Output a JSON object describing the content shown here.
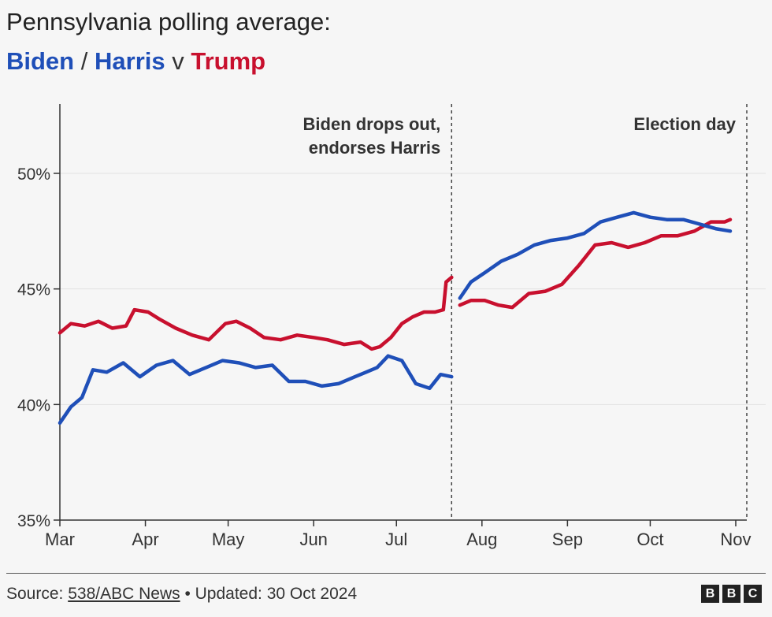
{
  "header": {
    "title": "Pennsylvania polling average:",
    "subtitle": {
      "biden": "Biden",
      "slash": "/",
      "harris": "Harris",
      "v": "v",
      "trump": "Trump"
    }
  },
  "colors": {
    "dem": "#1f4fb8",
    "rep": "#c8102e"
  },
  "chart_data": {
    "type": "line",
    "title": "Pennsylvania polling average:",
    "x_range": [
      "2024-03-01",
      "2024-11-05"
    ],
    "ylim": [
      35,
      53
    ],
    "y_ticks": [
      {
        "value": 50,
        "label": "50%"
      },
      {
        "value": 45,
        "label": "45%"
      },
      {
        "value": 40,
        "label": "40%"
      },
      {
        "value": 35,
        "label": "35%"
      }
    ],
    "x_ticks": [
      {
        "date": "2024-03-01",
        "label": "Mar"
      },
      {
        "date": "2024-04-01",
        "label": "Apr"
      },
      {
        "date": "2024-05-01",
        "label": "May"
      },
      {
        "date": "2024-06-01",
        "label": "Jun"
      },
      {
        "date": "2024-07-01",
        "label": "Jul"
      },
      {
        "date": "2024-08-01",
        "label": "Aug"
      },
      {
        "date": "2024-09-01",
        "label": "Sep"
      },
      {
        "date": "2024-10-01",
        "label": "Oct"
      },
      {
        "date": "2024-11-01",
        "label": "Nov"
      }
    ],
    "grid": true,
    "annotations": [
      {
        "date": "2024-07-21",
        "lines": [
          "Biden drops out,",
          "endorses Harris"
        ]
      },
      {
        "date": "2024-11-05",
        "lines": [
          "Election day"
        ]
      }
    ],
    "series": [
      {
        "name": "Trump",
        "color": "#c8102e",
        "segments": [
          {
            "x": [
              "2024-03-01",
              "2024-03-05",
              "2024-03-10",
              "2024-03-15",
              "2024-03-20",
              "2024-03-25",
              "2024-03-28",
              "2024-04-02",
              "2024-04-06",
              "2024-04-12",
              "2024-04-18",
              "2024-04-24",
              "2024-04-30",
              "2024-05-04",
              "2024-05-09",
              "2024-05-14",
              "2024-05-20",
              "2024-05-26",
              "2024-06-01",
              "2024-06-06",
              "2024-06-12",
              "2024-06-18",
              "2024-06-22",
              "2024-06-25",
              "2024-06-29",
              "2024-07-03",
              "2024-07-07",
              "2024-07-11",
              "2024-07-15",
              "2024-07-18",
              "2024-07-19",
              "2024-07-21"
            ],
            "y": [
              43.1,
              43.5,
              43.4,
              43.6,
              43.3,
              43.4,
              44.1,
              44.0,
              43.7,
              43.3,
              43.0,
              42.8,
              43.5,
              43.6,
              43.3,
              42.9,
              42.8,
              43.0,
              42.9,
              42.8,
              42.6,
              42.7,
              42.4,
              42.5,
              42.9,
              43.5,
              43.8,
              44.0,
              44.0,
              44.1,
              45.3,
              45.5
            ]
          },
          {
            "x": [
              "2024-07-24",
              "2024-07-28",
              "2024-08-02",
              "2024-08-07",
              "2024-08-12",
              "2024-08-18",
              "2024-08-24",
              "2024-08-30",
              "2024-09-05",
              "2024-09-11",
              "2024-09-17",
              "2024-09-23",
              "2024-09-29",
              "2024-10-05",
              "2024-10-11",
              "2024-10-17",
              "2024-10-23",
              "2024-10-28",
              "2024-10-30"
            ],
            "y": [
              44.3,
              44.5,
              44.5,
              44.3,
              44.2,
              44.8,
              44.9,
              45.2,
              46.0,
              46.9,
              47.0,
              46.8,
              47.0,
              47.3,
              47.3,
              47.5,
              47.9,
              47.9,
              48.0
            ]
          }
        ]
      },
      {
        "name": "Harris",
        "color": "#1f4fb8",
        "segments": [
          {
            "x": [
              "2024-03-01",
              "2024-03-05",
              "2024-03-09",
              "2024-03-13",
              "2024-03-18",
              "2024-03-24",
              "2024-03-30",
              "2024-04-05",
              "2024-04-11",
              "2024-04-17",
              "2024-04-23",
              "2024-04-29",
              "2024-05-05",
              "2024-05-11",
              "2024-05-17",
              "2024-05-23",
              "2024-05-29",
              "2024-06-04",
              "2024-06-10",
              "2024-06-16",
              "2024-06-20",
              "2024-06-24",
              "2024-06-28",
              "2024-07-03",
              "2024-07-08",
              "2024-07-13",
              "2024-07-17",
              "2024-07-21"
            ],
            "y": [
              39.2,
              39.9,
              40.3,
              41.5,
              41.4,
              41.8,
              41.2,
              41.7,
              41.9,
              41.3,
              41.6,
              41.9,
              41.8,
              41.6,
              41.7,
              41.0,
              41.0,
              40.8,
              40.9,
              41.2,
              41.4,
              41.6,
              42.1,
              41.9,
              40.9,
              40.7,
              41.3,
              41.2
            ]
          },
          {
            "x": [
              "2024-07-24",
              "2024-07-28",
              "2024-08-02",
              "2024-08-08",
              "2024-08-14",
              "2024-08-20",
              "2024-08-26",
              "2024-09-01",
              "2024-09-07",
              "2024-09-13",
              "2024-09-19",
              "2024-09-25",
              "2024-10-01",
              "2024-10-07",
              "2024-10-13",
              "2024-10-19",
              "2024-10-25",
              "2024-10-30"
            ],
            "y": [
              44.6,
              45.3,
              45.7,
              46.2,
              46.5,
              46.9,
              47.1,
              47.2,
              47.4,
              47.9,
              48.1,
              48.3,
              48.1,
              48.0,
              48.0,
              47.8,
              47.6,
              47.5
            ]
          }
        ]
      }
    ]
  },
  "footer": {
    "source_prefix": "Source: ",
    "source_link": "538/ABC News",
    "updated": " • Updated: 30 Oct 2024"
  },
  "logo": [
    "B",
    "B",
    "C"
  ]
}
